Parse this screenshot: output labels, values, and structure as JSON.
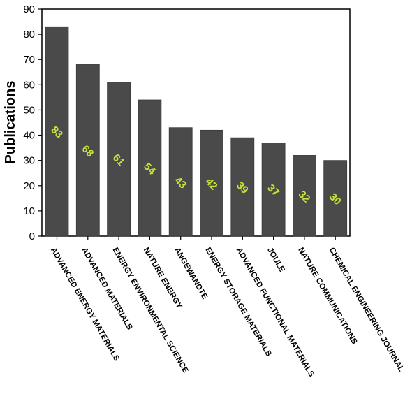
{
  "chart_data": {
    "type": "bar",
    "categories": [
      "ADVANCED ENERGY MATERIALS",
      "ADVANCED MATERIALS",
      "ENERGY ENVIRONMENTAL SCIENCE",
      "NATURE ENERGY",
      "ANGEWANDTE",
      "ENERGY STORAGE MATERIALS",
      "ADVANCED FUNCTIONAL MATERIALS",
      "JOULE",
      "NATURE COMMUNICATIONS",
      "CHEMICAL ENGINEERING JOURNAL"
    ],
    "values": [
      83,
      68,
      61,
      54,
      43,
      42,
      39,
      37,
      32,
      30
    ],
    "data_labels": [
      "83",
      "68",
      "61",
      "54",
      "43",
      "42",
      "39",
      "37",
      "32",
      "30"
    ],
    "ylabel": "Publications",
    "ylim": [
      0,
      90
    ],
    "yticks": [
      0,
      10,
      20,
      30,
      40,
      50,
      60,
      70,
      80,
      90
    ],
    "grid": false,
    "legend": "none",
    "colors": {
      "bar": "#4a4a4a",
      "bar_edge": "#3a3a3a",
      "data_label": "#c6e33a",
      "axis": "#000000"
    }
  }
}
